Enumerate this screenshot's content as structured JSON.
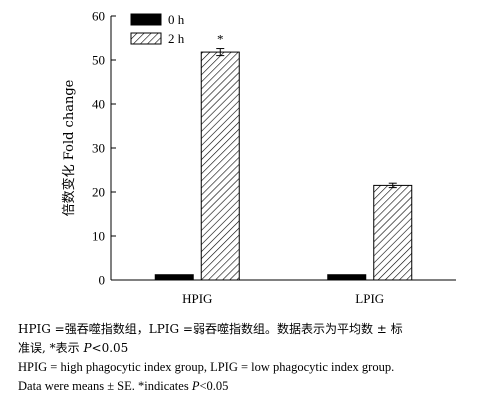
{
  "chart_data": {
    "type": "bar",
    "ylabel": "倍数变化 Fold change",
    "ylim": [
      0,
      60
    ],
    "yticks": [
      0,
      10,
      20,
      30,
      40,
      50,
      60
    ],
    "categories": [
      "HPIG",
      "LPIG"
    ],
    "series": [
      {
        "name": "0 h",
        "values": [
          1.2,
          1.2
        ],
        "errors": [
          0,
          0
        ],
        "fill": "solid",
        "color": "#000000"
      },
      {
        "name": "2 h",
        "values": [
          51.8,
          21.5
        ],
        "errors": [
          0.8,
          0.5
        ],
        "fill": "hatch",
        "color": "#000000"
      }
    ],
    "annotations": [
      {
        "category": "HPIG",
        "series": "2 h",
        "text": "*"
      }
    ],
    "legend_position": "top-left",
    "grid": false
  },
  "caption": {
    "cn_line1_a": "HPIG =强吞噬指数组，LPIG =弱吞噬指数组。数据表示为平均数 ± 标",
    "cn_line2_a": "准误, *表示 ",
    "cn_p": "P",
    "cn_line2_b": "<0.05",
    "en_line1": "HPIG = high phagocytic index group, LPIG = low phagocytic index group.",
    "en_line2_a": "Data were means ± SE. *indicates ",
    "en_p": "P",
    "en_line2_b": "<0.05"
  }
}
